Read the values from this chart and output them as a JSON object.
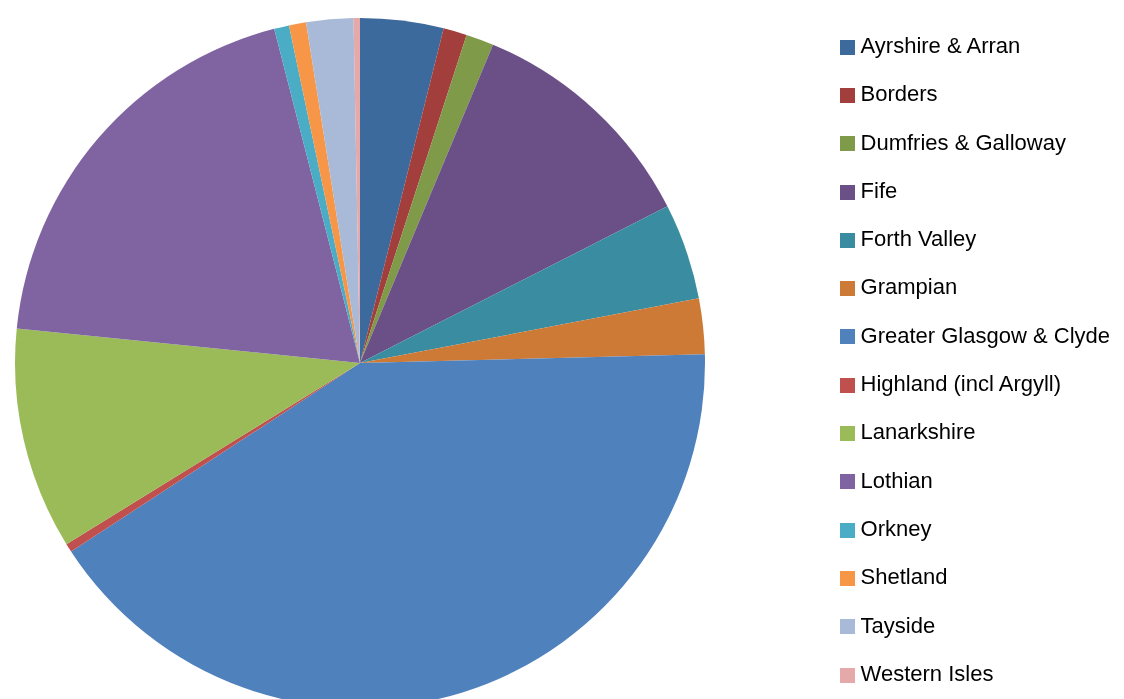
{
  "chart_data": {
    "type": "pie",
    "categories": [
      "Ayrshire & Arran",
      "Borders",
      "Dumfries & Galloway",
      "Fife",
      "Forth Valley",
      "Grampian",
      "Greater Glasgow & Clyde",
      "Highland (incl Argyll)",
      "Lanarkshire",
      "Lothian",
      "Orkney",
      "Shetland",
      "Tayside",
      "Western Isles"
    ],
    "values": [
      3.9,
      1.1,
      1.3,
      11.2,
      4.5,
      2.6,
      41.2,
      0.4,
      10.4,
      19.4,
      0.7,
      0.8,
      2.2,
      0.3
    ],
    "colors": [
      "#3d6a9c",
      "#a23f3c",
      "#7f9a48",
      "#6a5087",
      "#3a8da0",
      "#cc7a35",
      "#4f81bd",
      "#c0504d",
      "#9bbb59",
      "#8064a2",
      "#4bacc6",
      "#f79646",
      "#a9b9d8",
      "#e4a9a8"
    ],
    "legend": "right"
  }
}
